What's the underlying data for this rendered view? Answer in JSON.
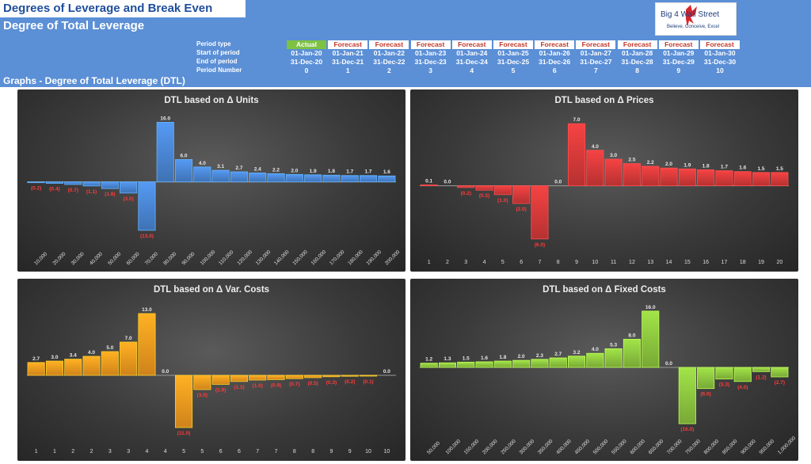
{
  "header": {
    "main_title": "Degrees of Leverage and Break Even",
    "subtitle": "Degree of Total Leverage",
    "graphs_label": "Graphs - Degree of Total Leverage (DTL)",
    "logo": {
      "main": "Big 4 Wall Street",
      "tagline": "Believe, Conceive, Excel"
    },
    "row_labels": [
      "Period type",
      "Start of period",
      "End of period",
      "Period Number"
    ],
    "periods": [
      {
        "type": "Actual",
        "start": "01-Jan-20",
        "end": "31-Dec-20",
        "num": "0"
      },
      {
        "type": "Forecast",
        "start": "01-Jan-21",
        "end": "31-Dec-21",
        "num": "1"
      },
      {
        "type": "Forecast",
        "start": "01-Jan-22",
        "end": "31-Dec-22",
        "num": "2"
      },
      {
        "type": "Forecast",
        "start": "01-Jan-23",
        "end": "31-Dec-23",
        "num": "3"
      },
      {
        "type": "Forecast",
        "start": "01-Jan-24",
        "end": "31-Dec-24",
        "num": "4"
      },
      {
        "type": "Forecast",
        "start": "01-Jan-25",
        "end": "31-Dec-25",
        "num": "5"
      },
      {
        "type": "Forecast",
        "start": "01-Jan-26",
        "end": "31-Dec-26",
        "num": "6"
      },
      {
        "type": "Forecast",
        "start": "01-Jan-27",
        "end": "31-Dec-27",
        "num": "7"
      },
      {
        "type": "Forecast",
        "start": "01-Jan-28",
        "end": "31-Dec-28",
        "num": "8"
      },
      {
        "type": "Forecast",
        "start": "01-Jan-29",
        "end": "31-Dec-29",
        "num": "9"
      },
      {
        "type": "Forecast",
        "start": "01-Jan-30",
        "end": "31-Dec-30",
        "num": "10"
      }
    ],
    "colors": {
      "header_bg": "#5b8fd6",
      "actual": "#7dc242",
      "forecast_text": "#c0392b"
    }
  },
  "chart_data": [
    {
      "type": "bar",
      "title": "DTL based on Δ Units",
      "color": "#4a86d4",
      "label_precision": 1,
      "categories": [
        "10,000",
        "20,000",
        "30,000",
        "40,000",
        "50,000",
        "60,000",
        "70,000",
        "80,000",
        "90,000",
        "100,000",
        "110,000",
        "120,000",
        "130,000",
        "140,000",
        "150,000",
        "160,000",
        "170,000",
        "180,000",
        "190,000",
        "200,000"
      ],
      "values": [
        -0.2,
        -0.4,
        -0.7,
        -1.1,
        -1.8,
        -3.0,
        -13.0,
        16.0,
        6.0,
        4.0,
        3.1,
        2.7,
        2.4,
        2.2,
        2.0,
        1.9,
        1.8,
        1.7,
        1.7,
        1.6
      ],
      "ylim": [
        -16,
        18
      ],
      "rotate_ticks": true
    },
    {
      "type": "bar",
      "title": "DTL based on Δ Prices",
      "color": "#d63a3a",
      "label_precision": 1,
      "categories": [
        "1",
        "2",
        "3",
        "4",
        "5",
        "6",
        "7",
        "8",
        "9",
        "10",
        "11",
        "12",
        "13",
        "14",
        "15",
        "16",
        "17",
        "18",
        "19",
        "20"
      ],
      "values": [
        0.1,
        0.0,
        -0.2,
        -0.5,
        -1.0,
        -2.0,
        -6.0,
        0.0,
        7.0,
        4.0,
        3.0,
        2.5,
        2.2,
        2.0,
        1.9,
        1.8,
        1.7,
        1.6,
        1.5,
        1.5
      ],
      "ylim": [
        -7,
        8
      ],
      "rotate_ticks": false
    },
    {
      "type": "bar",
      "title": "DTL based on Δ Var. Costs",
      "color": "#f39a1e",
      "label_precision": 1,
      "categories": [
        "1",
        "1",
        "2",
        "2",
        "3",
        "3",
        "4",
        "4",
        "5",
        "5",
        "6",
        "6",
        "7",
        "7",
        "8",
        "8",
        "9",
        "9",
        "10",
        "10"
      ],
      "values": [
        2.7,
        3.0,
        3.4,
        4.0,
        5.0,
        7.0,
        13.0,
        0.0,
        -11.0,
        -3.0,
        -1.9,
        -1.3,
        -1.0,
        -0.9,
        -0.7,
        -0.5,
        -0.3,
        -0.2,
        -0.1,
        0.0
      ],
      "ylim": [
        -13,
        15
      ],
      "rotate_ticks": false
    },
    {
      "type": "bar",
      "title": "DTL based on Δ Fixed Costs",
      "color": "#8dc63f",
      "label_precision": 1,
      "categories": [
        "50,000",
        "100,000",
        "150,000",
        "200,000",
        "250,000",
        "300,000",
        "350,000",
        "400,000",
        "450,000",
        "500,000",
        "550,000",
        "600,000",
        "650,000",
        "700,000",
        "750,000",
        "800,000",
        "850,000",
        "900,000",
        "950,000",
        "1,000,000"
      ],
      "values": [
        1.2,
        1.3,
        1.5,
        1.6,
        1.8,
        2.0,
        2.3,
        2.7,
        3.2,
        4.0,
        5.3,
        8.0,
        16.0,
        0.0,
        -16.0,
        -6.0,
        -3.3,
        -4.0,
        -1.2,
        -2.7
      ],
      "ylim": [
        -18,
        18
      ],
      "rotate_ticks": true
    }
  ]
}
